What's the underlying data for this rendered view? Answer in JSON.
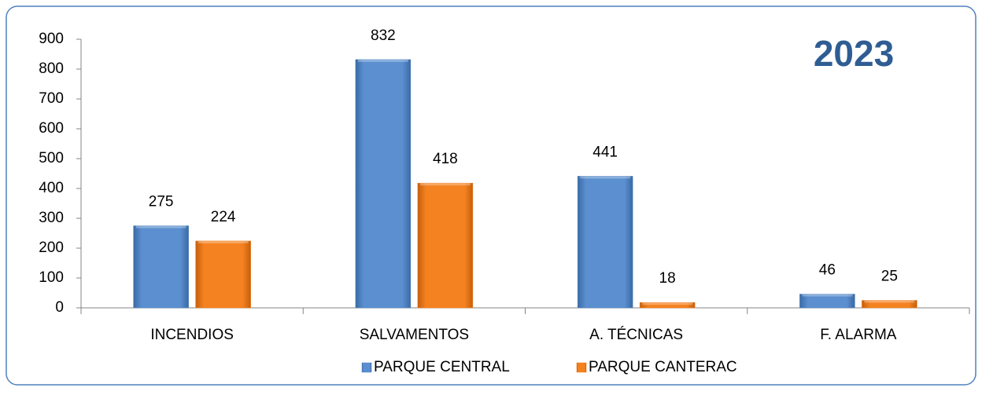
{
  "chart_data": {
    "type": "bar",
    "title": "2023",
    "categories": [
      "INCENDIOS",
      "SALVAMENTOS",
      "A. TÉCNICAS",
      "F. ALARMA"
    ],
    "series": [
      {
        "name": "PARQUE CENTRAL",
        "color": "#4f81bd",
        "values": [
          275,
          832,
          441,
          46
        ]
      },
      {
        "name": "PARQUE CANTERAC",
        "color": "#f07a17",
        "values": [
          224,
          418,
          18,
          25
        ]
      }
    ],
    "ylim": [
      0,
      900
    ],
    "yticks": [
      0,
      100,
      200,
      300,
      400,
      500,
      600,
      700,
      800,
      900
    ],
    "grid": false,
    "legend": "bottom"
  }
}
